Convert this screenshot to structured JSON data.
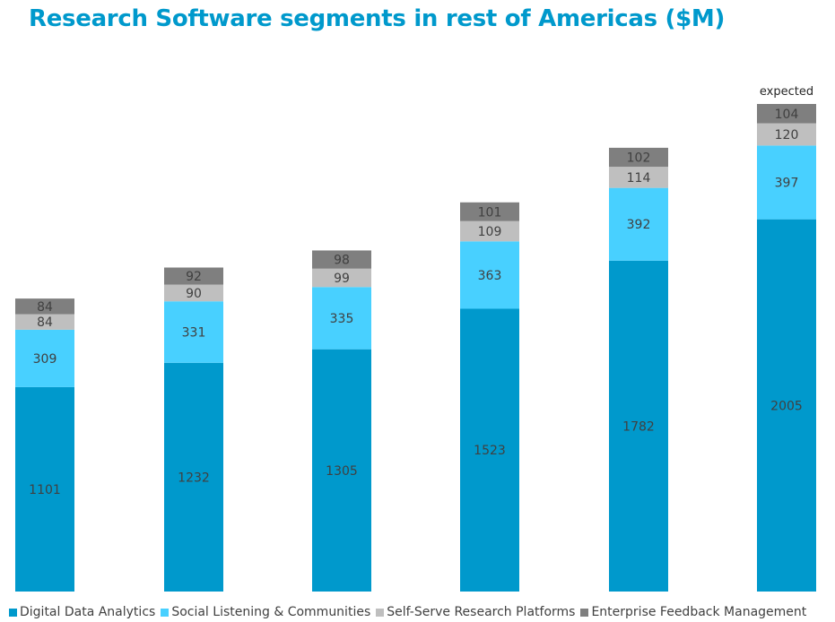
{
  "title": "Research Software segments in rest of Americas ($M)",
  "chart_data": {
    "type": "bar",
    "stacked": true,
    "title": "Research Software segments in rest of Americas ($M)",
    "xlabel": "",
    "ylabel": "",
    "categories": [
      "",
      "",
      "",
      "",
      "",
      ""
    ],
    "series": [
      {
        "name": "Digital Data Analytics",
        "color": "#0099cc",
        "values": [
          1101,
          1232,
          1305,
          1523,
          1782,
          2005
        ]
      },
      {
        "name": "Social Listening & Communities",
        "color": "#48d0ff",
        "values": [
          309,
          331,
          335,
          363,
          392,
          397
        ]
      },
      {
        "name": "Self-Serve Research Platforms",
        "color": "#bfbfbf",
        "values": [
          84,
          90,
          99,
          109,
          114,
          120
        ]
      },
      {
        "name": "Enterprise Feedback Management",
        "color": "#7f7f7f",
        "values": [
          84,
          92,
          98,
          101,
          102,
          104
        ]
      }
    ],
    "annotations": [
      {
        "category_index": 5,
        "text": "expected"
      }
    ],
    "ylim": [
      0,
      2626
    ],
    "grid": false,
    "legend_position": "bottom"
  }
}
